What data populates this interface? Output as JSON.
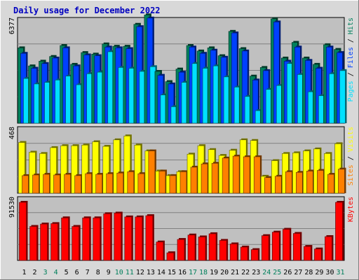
{
  "chart_data": {
    "title": "Daily usage for December 2022",
    "colors": {
      "background": "#d8d8d8",
      "plot": "#c0c0c0",
      "title": "#0000c0",
      "hits": "#00805c",
      "files": "#0040ff",
      "pages": "#00e0ff",
      "visits": "#ffff00",
      "sites": "#ff8000",
      "kbytes": "#ff0000",
      "weekend_day": "#00805c",
      "weekday_day": "#000000"
    },
    "categories": [
      "1",
      "2",
      "3",
      "4",
      "5",
      "6",
      "7",
      "8",
      "9",
      "10",
      "11",
      "12",
      "13",
      "14",
      "15",
      "16",
      "17",
      "18",
      "19",
      "20",
      "21",
      "22",
      "23",
      "24",
      "25",
      "26",
      "27",
      "28",
      "29",
      "30",
      "31"
    ],
    "weekend_days": [
      "3",
      "4",
      "10",
      "11",
      "17",
      "18",
      "24",
      "25",
      "31"
    ],
    "panels": [
      {
        "type": "bar",
        "ymax": 6377,
        "ymax_label": "6377",
        "legend": [
          "Pages",
          "Files",
          "Hits"
        ],
        "series": [
          {
            "name": "Hits",
            "values": [
              4800,
              3650,
              3950,
              4250,
              4950,
              3750,
              4500,
              4400,
              5050,
              4900,
              4900,
              6300,
              6900,
              3300,
              2650,
              3450,
              4950,
              4600,
              4800,
              4300,
              5850,
              4750,
              3000,
              3550,
              6650,
              4150,
              5150,
              4150,
              3750,
              5000,
              4700
            ]
          },
          {
            "name": "Files",
            "values": [
              4450,
              3500,
              3800,
              4150,
              4800,
              3650,
              4350,
              4300,
              4850,
              4800,
              4750,
              6150,
              6700,
              3050,
              2500,
              3250,
              4850,
              4450,
              4650,
              4200,
              5750,
              4600,
              2750,
              3350,
              6450,
              3950,
              4850,
              4000,
              3500,
              4850,
              4500
            ]
          },
          {
            "name": "Pages",
            "values": [
              2850,
              2500,
              2600,
              2750,
              3000,
              2450,
              3150,
              3250,
              4550,
              3550,
              3500,
              3300,
              3600,
              1800,
              1050,
              2600,
              3800,
              3500,
              3650,
              2950,
              2300,
              1700,
              800,
              2150,
              2400,
              3800,
              3100,
              2000,
              1750,
              3150,
              3350
            ]
          }
        ]
      },
      {
        "type": "bar",
        "ymax": 468,
        "ymax_label": "468",
        "legend": [
          "Sites",
          "Visits"
        ],
        "series": [
          {
            "name": "Visits",
            "values": [
              390,
              315,
              305,
              350,
              365,
              365,
              370,
              395,
              360,
              410,
              440,
              370,
              325,
              170,
              135,
              165,
              300,
              365,
              335,
              290,
              330,
              410,
              405,
              130,
              250,
              305,
              310,
              325,
              340,
              305,
              380
            ]
          },
          {
            "name": "Sites",
            "values": [
              135,
              140,
              145,
              140,
              145,
              135,
              150,
              145,
              150,
              155,
              165,
              150,
              325,
              170,
              135,
              165,
              200,
              225,
              230,
              270,
              285,
              280,
              280,
              120,
              130,
              165,
              160,
              170,
              175,
              145,
              185
            ]
          }
        ]
      },
      {
        "type": "bar",
        "ymax": 91530,
        "ymax_label": "91530",
        "legend": [
          "KBytes"
        ],
        "series": [
          {
            "name": "KBytes",
            "values": [
              91530,
              53500,
              57300,
              58000,
              67000,
              53500,
              67000,
              67000,
              73500,
              74500,
              68500,
              68500,
              70500,
              29000,
              12000,
              33000,
              40000,
              37000,
              42000,
              31500,
              26000,
              21000,
              17000,
              39000,
              44500,
              49000,
              42500,
              22000,
              18000,
              37500,
              91530
            ]
          }
        ]
      }
    ]
  }
}
